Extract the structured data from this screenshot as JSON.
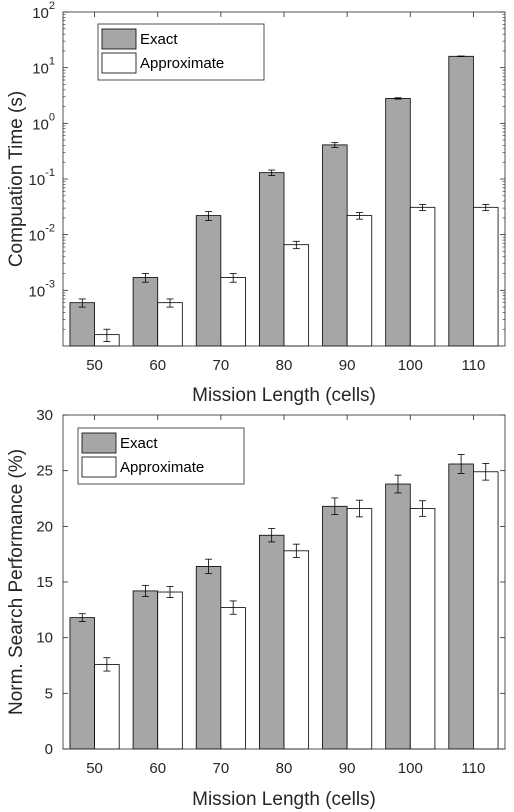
{
  "chart_data": [
    {
      "type": "bar",
      "title": "",
      "xlabel": "Mission Length (cells)",
      "ylabel": "Compuation Time (s)",
      "yscale": "log",
      "ylim": [
        0.0001,
        100
      ],
      "grid": false,
      "legend": "top-left",
      "categories": [
        "50",
        "60",
        "70",
        "80",
        "90",
        "100",
        "110"
      ],
      "yticks": [
        {
          "base": "10",
          "exp": "-3",
          "value": 0.001
        },
        {
          "base": "10",
          "exp": "-2",
          "value": 0.01
        },
        {
          "base": "10",
          "exp": "-1",
          "value": 0.1
        },
        {
          "base": "10",
          "exp": "0",
          "value": 1
        },
        {
          "base": "10",
          "exp": "1",
          "value": 10
        },
        {
          "base": "10",
          "exp": "2",
          "value": 100
        }
      ],
      "series": [
        {
          "name": "Exact",
          "color": "#a6a6a6",
          "values": [
            0.0006,
            0.0017,
            0.022,
            0.13,
            0.41,
            2.8,
            16
          ],
          "errors": [
            0.0001,
            0.0003,
            0.004,
            0.015,
            0.04,
            0.08,
            0.2
          ]
        },
        {
          "name": "Approximate",
          "color": "#ffffff",
          "values": [
            0.00016,
            0.0006,
            0.0017,
            0.0066,
            0.022,
            0.031,
            0.031
          ],
          "errors": [
            4e-05,
            0.0001,
            0.0003,
            0.001,
            0.003,
            0.004,
            0.004
          ]
        }
      ]
    },
    {
      "type": "bar",
      "title": "",
      "xlabel": "Mission Length (cells)",
      "ylabel": "Norm. Search Performance (%)",
      "yscale": "linear",
      "ylim": [
        0,
        30
      ],
      "grid": false,
      "legend": "top-left",
      "categories": [
        "50",
        "60",
        "70",
        "80",
        "90",
        "100",
        "110"
      ],
      "yticks": [
        "0",
        "5",
        "10",
        "15",
        "20",
        "25",
        "30"
      ],
      "series": [
        {
          "name": "Exact",
          "color": "#a6a6a6",
          "values": [
            11.8,
            14.2,
            16.4,
            19.2,
            21.8,
            23.8,
            25.6
          ],
          "errors": [
            0.35,
            0.5,
            0.65,
            0.6,
            0.75,
            0.8,
            0.85
          ]
        },
        {
          "name": "Approximate",
          "color": "#ffffff",
          "values": [
            7.6,
            14.1,
            12.7,
            17.8,
            21.6,
            21.6,
            24.9
          ],
          "errors": [
            0.6,
            0.5,
            0.6,
            0.6,
            0.75,
            0.7,
            0.75
          ]
        }
      ]
    }
  ]
}
